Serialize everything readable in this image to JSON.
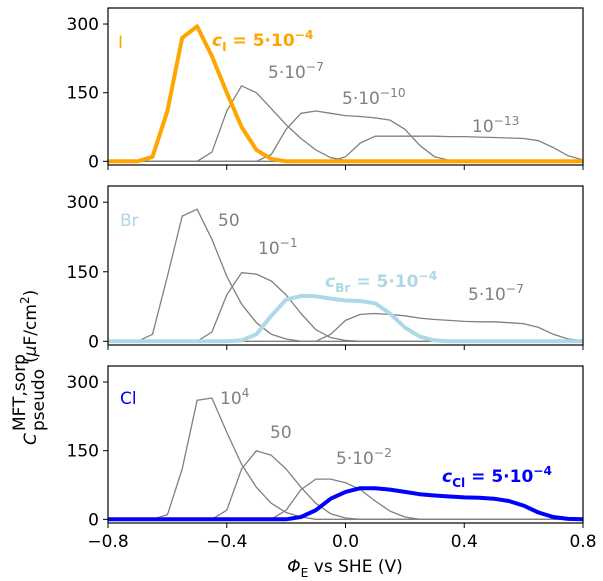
{
  "chart_data": [
    {
      "type": "line",
      "x": [
        -0.8,
        -0.75,
        -0.7,
        -0.65,
        -0.6,
        -0.55,
        -0.5,
        -0.45,
        -0.4,
        -0.35,
        -0.3,
        -0.25,
        -0.2,
        -0.15,
        -0.1,
        -0.05,
        0,
        0.05,
        0.1,
        0.15,
        0.2,
        0.25,
        0.3,
        0.35,
        0.4,
        0.45,
        0.5,
        0.55,
        0.6,
        0.65,
        0.7,
        0.75,
        0.8
      ],
      "xlim": [
        -0.8,
        0.8
      ],
      "xticks": [
        {
          "value": -0.8,
          "label": "−0.8"
        },
        {
          "value": -0.4,
          "label": "−0.4"
        },
        {
          "value": 0,
          "label": "0.0"
        },
        {
          "value": 0.4,
          "label": "0.4"
        },
        {
          "value": 0.8,
          "label": "0.8"
        }
      ],
      "ylim": [
        -8,
        335
      ],
      "yticks": [
        0,
        150,
        300
      ],
      "series": [
        {
          "color": "#808080",
          "linewidth": 1.3,
          "values": [
            0,
            0,
            0,
            0,
            0,
            0,
            0,
            20,
            110,
            165,
            150,
            115,
            80,
            50,
            25,
            8,
            2,
            0,
            0,
            0,
            0,
            0,
            0,
            0,
            0,
            0,
            0,
            0,
            0,
            0,
            0,
            0,
            0
          ]
        },
        {
          "color": "#808080",
          "linewidth": 1.3,
          "values": [
            0,
            0,
            0,
            0,
            0,
            0,
            0,
            0,
            0,
            0,
            0,
            15,
            70,
            105,
            110,
            105,
            100,
            98,
            95,
            90,
            70,
            35,
            10,
            2,
            0,
            0,
            0,
            0,
            0,
            0,
            0,
            0,
            0
          ]
        },
        {
          "color": "#808080",
          "linewidth": 1.3,
          "values": [
            0,
            0,
            0,
            0,
            0,
            0,
            0,
            0,
            0,
            0,
            0,
            0,
            0,
            0,
            0,
            0,
            10,
            40,
            55,
            55,
            55,
            55,
            55,
            54,
            54,
            53,
            52,
            51,
            50,
            45,
            30,
            12,
            3
          ]
        },
        {
          "color": "#FFA500",
          "linewidth": 4,
          "values": [
            0,
            0,
            0,
            10,
            110,
            270,
            295,
            230,
            150,
            75,
            25,
            5,
            0,
            0,
            0,
            0,
            0,
            0,
            0,
            0,
            0,
            0,
            0,
            0,
            0,
            0,
            0,
            0,
            0,
            0,
            0,
            0,
            0
          ]
        }
      ],
      "annotations": [
        {
          "text": "I",
          "color": "#FFA500",
          "size": "large"
        },
        {
          "main": "c",
          "sub": "I",
          "text": " = 5·10",
          "sup": "−4",
          "color": "#FFA500",
          "bold": true
        },
        {
          "text": "5·10",
          "sup": "−7",
          "color": "#808080"
        },
        {
          "text": "5·10",
          "sup": "−10",
          "color": "#808080"
        },
        {
          "text": "10",
          "sup": "−13",
          "color": "#808080"
        }
      ]
    },
    {
      "type": "line",
      "x": [
        -0.8,
        -0.75,
        -0.7,
        -0.65,
        -0.6,
        -0.55,
        -0.5,
        -0.45,
        -0.4,
        -0.35,
        -0.3,
        -0.25,
        -0.2,
        -0.15,
        -0.1,
        -0.05,
        0,
        0.05,
        0.1,
        0.15,
        0.2,
        0.25,
        0.3,
        0.35,
        0.4,
        0.45,
        0.5,
        0.55,
        0.6,
        0.65,
        0.7,
        0.75,
        0.8
      ],
      "xlim": [
        -0.8,
        0.8
      ],
      "xticks": [
        {
          "value": -0.8,
          "label": "−0.8"
        },
        {
          "value": -0.4,
          "label": "−0.4"
        },
        {
          "value": 0,
          "label": "0.0"
        },
        {
          "value": 0.4,
          "label": "0.4"
        },
        {
          "value": 0.8,
          "label": "0.8"
        }
      ],
      "ylim": [
        -8,
        335
      ],
      "yticks": [
        0,
        150,
        300
      ],
      "series": [
        {
          "color": "#808080",
          "linewidth": 1.3,
          "values": [
            0,
            0,
            0,
            15,
            140,
            270,
            285,
            220,
            140,
            80,
            40,
            15,
            5,
            0,
            0,
            0,
            0,
            0,
            0,
            0,
            0,
            0,
            0,
            0,
            0,
            0,
            0,
            0,
            0,
            0,
            0,
            0,
            0
          ]
        },
        {
          "color": "#808080",
          "linewidth": 1.3,
          "values": [
            0,
            0,
            0,
            0,
            0,
            0,
            0,
            20,
            100,
            148,
            145,
            130,
            100,
            60,
            25,
            8,
            2,
            0,
            0,
            0,
            0,
            0,
            0,
            0,
            0,
            0,
            0,
            0,
            0,
            0,
            0,
            0,
            0
          ]
        },
        {
          "color": "#808080",
          "linewidth": 1.3,
          "values": [
            0,
            0,
            0,
            0,
            0,
            0,
            0,
            0,
            0,
            0,
            0,
            0,
            0,
            0,
            0,
            15,
            45,
            58,
            60,
            58,
            55,
            50,
            47,
            45,
            43,
            42,
            42,
            40,
            38,
            30,
            15,
            5,
            1
          ]
        },
        {
          "color": "#ADD8E6",
          "linewidth": 4,
          "values": [
            0,
            0,
            0,
            0,
            0,
            0,
            0,
            0,
            0,
            2,
            15,
            55,
            90,
            98,
            97,
            92,
            88,
            87,
            82,
            60,
            30,
            10,
            2,
            0,
            0,
            0,
            0,
            0,
            0,
            0,
            0,
            0,
            0
          ]
        }
      ],
      "annotations": [
        {
          "text": "Br",
          "color": "#ADD8E6",
          "size": "large"
        },
        {
          "text": "50",
          "color": "#808080"
        },
        {
          "text": "10",
          "sup": "−1",
          "color": "#808080"
        },
        {
          "main": "c",
          "sub": "Br",
          "text": " = 5·10",
          "sup": "−4",
          "color": "#ADD8E6",
          "bold": true
        },
        {
          "text": "5·10",
          "sup": "−7",
          "color": "#808080"
        }
      ]
    },
    {
      "type": "line",
      "x": [
        -0.8,
        -0.75,
        -0.7,
        -0.65,
        -0.6,
        -0.55,
        -0.5,
        -0.45,
        -0.4,
        -0.35,
        -0.3,
        -0.25,
        -0.2,
        -0.15,
        -0.1,
        -0.05,
        0,
        0.05,
        0.1,
        0.15,
        0.2,
        0.25,
        0.3,
        0.35,
        0.4,
        0.45,
        0.5,
        0.55,
        0.6,
        0.65,
        0.7,
        0.75,
        0.8
      ],
      "xlim": [
        -0.8,
        0.8
      ],
      "xticks": [
        {
          "value": -0.8,
          "label": "−0.8"
        },
        {
          "value": -0.4,
          "label": "−0.4"
        },
        {
          "value": 0,
          "label": "0.0"
        },
        {
          "value": 0.4,
          "label": "0.4"
        },
        {
          "value": 0.8,
          "label": "0.8"
        }
      ],
      "ylim": [
        -8,
        335
      ],
      "yticks": [
        0,
        150,
        300
      ],
      "series": [
        {
          "color": "#808080",
          "linewidth": 1.3,
          "values": [
            0,
            0,
            0,
            0,
            10,
            110,
            260,
            265,
            190,
            120,
            70,
            35,
            15,
            5,
            0,
            0,
            0,
            0,
            0,
            0,
            0,
            0,
            0,
            0,
            0,
            0,
            0,
            0,
            0,
            0,
            0,
            0,
            0
          ]
        },
        {
          "color": "#808080",
          "linewidth": 1.3,
          "values": [
            0,
            0,
            0,
            0,
            0,
            0,
            0,
            0,
            20,
            110,
            150,
            140,
            110,
            70,
            35,
            12,
            3,
            0,
            0,
            0,
            0,
            0,
            0,
            0,
            0,
            0,
            0,
            0,
            0,
            0,
            0,
            0,
            0
          ]
        },
        {
          "color": "#808080",
          "linewidth": 1.3,
          "values": [
            0,
            0,
            0,
            0,
            0,
            0,
            0,
            0,
            0,
            0,
            0,
            0,
            20,
            65,
            88,
            88,
            80,
            65,
            40,
            18,
            5,
            0,
            0,
            0,
            0,
            0,
            0,
            0,
            0,
            0,
            0,
            0,
            0
          ]
        },
        {
          "color": "#0000FF",
          "linewidth": 4,
          "values": [
            0,
            0,
            0,
            0,
            0,
            0,
            0,
            0,
            0,
            0,
            0,
            0,
            0,
            5,
            20,
            45,
            60,
            68,
            68,
            65,
            60,
            55,
            52,
            50,
            48,
            47,
            45,
            40,
            30,
            15,
            5,
            1,
            0
          ]
        }
      ],
      "annotations": [
        {
          "text": "Cl",
          "color": "#0000FF",
          "size": "large"
        },
        {
          "text": "10",
          "sup": "4",
          "color": "#808080"
        },
        {
          "text": "50",
          "color": "#808080"
        },
        {
          "text": "5·10",
          "sup": "−2",
          "color": "#808080"
        },
        {
          "main": "c",
          "sub": "Cl",
          "text": " = 5·10",
          "sup": "−4",
          "color": "#0000FF",
          "bold": true
        }
      ]
    }
  ],
  "ylabel": {
    "main": "C",
    "sup": "MFT,sorp",
    "sub": "pseudo",
    "text": "(",
    "unit": "μ",
    "rest": "F/cm",
    "sup2": "2",
    "end": ")"
  },
  "xlabel": {
    "main": "Φ",
    "sub": "E",
    "text": " vs SHE (V)"
  }
}
